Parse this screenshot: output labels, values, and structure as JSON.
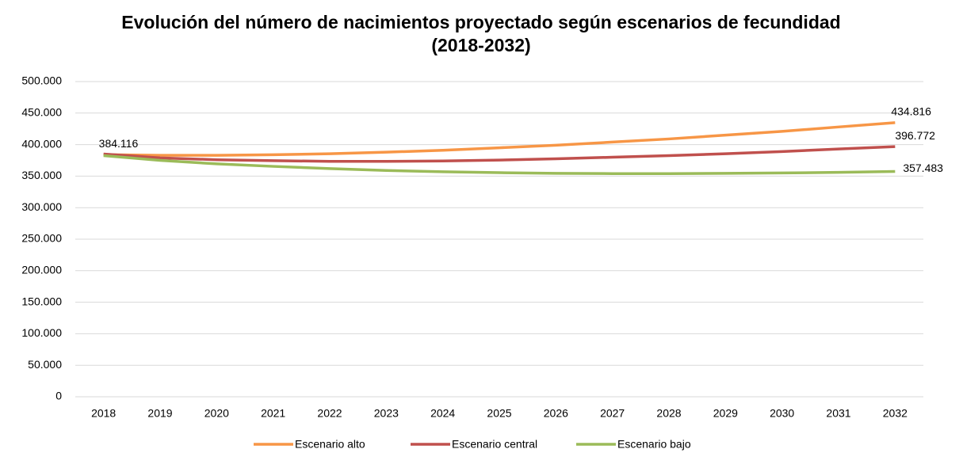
{
  "chart_data": {
    "type": "line",
    "title": "Evolución del número de nacimientos proyectado según escenarios de fecundidad (2018-2032)",
    "categories": [
      "2018",
      "2019",
      "2020",
      "2021",
      "2022",
      "2023",
      "2024",
      "2025",
      "2026",
      "2027",
      "2028",
      "2029",
      "2030",
      "2031",
      "2032"
    ],
    "series": [
      {
        "name": "Escenario alto",
        "color": "#f79646",
        "values": [
          384116,
          383000,
          383000,
          384000,
          385500,
          388000,
          391000,
          395000,
          399000,
          404000,
          409000,
          415000,
          421000,
          428000,
          434816
        ],
        "value_labels": [
          "384.116",
          null,
          null,
          null,
          null,
          null,
          null,
          null,
          null,
          null,
          null,
          null,
          null,
          null,
          "434.816"
        ]
      },
      {
        "name": "Escenario central",
        "color": "#c0504d",
        "values": [
          385000,
          379000,
          376000,
          374500,
          373500,
          373500,
          374000,
          375500,
          377500,
          380000,
          382500,
          385500,
          389000,
          393000,
          396772
        ],
        "value_labels": [
          null,
          null,
          null,
          null,
          null,
          null,
          null,
          null,
          null,
          null,
          null,
          null,
          null,
          null,
          "396.772"
        ]
      },
      {
        "name": "Escenario bajo",
        "color": "#9bbb59",
        "values": [
          382500,
          375000,
          369500,
          365500,
          362000,
          359000,
          357000,
          355500,
          354500,
          354000,
          354000,
          354500,
          355000,
          356000,
          357483
        ],
        "value_labels": [
          null,
          null,
          null,
          null,
          null,
          null,
          null,
          null,
          null,
          null,
          null,
          null,
          null,
          null,
          "357.483"
        ]
      }
    ],
    "ylim": [
      0,
      500000
    ],
    "yticks": [
      0,
      {
        "value": 50000,
        "label": "50.000"
      },
      {
        "value": 100000,
        "label": "100.000"
      },
      {
        "value": 150000,
        "label": "150.000"
      },
      {
        "value": 200000,
        "label": "200.000"
      },
      {
        "value": 250000,
        "label": "250.000"
      },
      {
        "value": 300000,
        "label": "300.000"
      },
      {
        "value": 350000,
        "label": "350.000"
      },
      {
        "value": 400000,
        "label": "400.000"
      },
      {
        "value": 450000,
        "label": "450.000"
      },
      {
        "value": 500000,
        "label": "500.000"
      }
    ],
    "grid": true,
    "legend": "bottom"
  }
}
